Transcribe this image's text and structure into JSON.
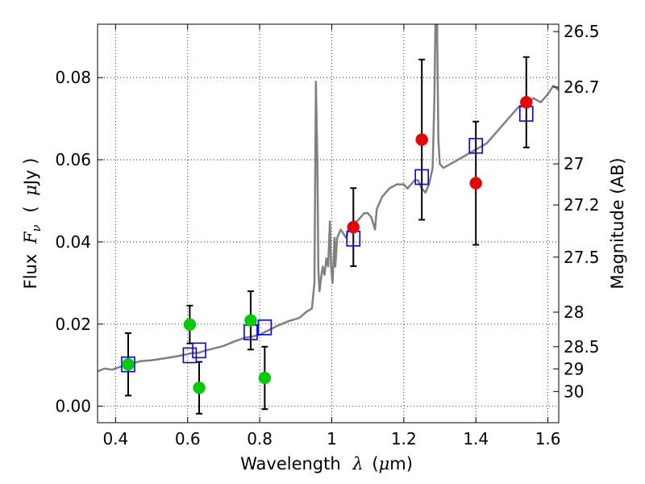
{
  "chart_data": {
    "type": "scatter",
    "xlabel": "Wavelength",
    "xlabel_symbol": "λ",
    "xlabel_unit_open": "(",
    "xlabel_unit_mu": "μ",
    "xlabel_unit_rest": "m)",
    "ylabel": "Flux",
    "ylabel_symbol": "F",
    "ylabel_symbol_sub": "ν",
    "ylabel_unit_open": "(",
    "ylabel_unit_mu": "μ",
    "ylabel_unit_rest": "Jy )",
    "y2label": "Magnitude (AB)",
    "xlim": [
      0.35,
      1.63
    ],
    "ylim": [
      -0.004,
      0.093
    ],
    "grid": true,
    "xticks": [
      0.4,
      0.6,
      0.8,
      1.0,
      1.2,
      1.4,
      1.6
    ],
    "xtick_labels": [
      "0.4",
      "0.6",
      "0.8",
      "1",
      "1.2",
      "1.4",
      "1.6"
    ],
    "yticks": [
      0.0,
      0.02,
      0.04,
      0.06,
      0.08
    ],
    "ytick_labels": [
      "0.00",
      "0.02",
      "0.04",
      "0.06",
      "0.08"
    ],
    "y2_ticks": [
      {
        "label": "26.5",
        "flux": 0.0912
      },
      {
        "label": "26.7",
        "flux": 0.0777
      },
      {
        "label": "27",
        "flux": 0.059
      },
      {
        "label": "27.2",
        "flux": 0.049
      },
      {
        "label": "27.5",
        "flux": 0.0363
      },
      {
        "label": "28",
        "flux": 0.0229
      },
      {
        "label": "28.5",
        "flux": 0.0145
      },
      {
        "label": "29",
        "flux": 0.0091
      },
      {
        "label": "30",
        "flux": 0.0036
      }
    ],
    "series": [
      {
        "kind": "line",
        "color": "#808080",
        "points": [
          [
            0.35,
            0.0085
          ],
          [
            0.37,
            0.0092
          ],
          [
            0.39,
            0.0089
          ],
          [
            0.41,
            0.0095
          ],
          [
            0.43,
            0.0101
          ],
          [
            0.45,
            0.0105
          ],
          [
            0.47,
            0.011
          ],
          [
            0.5,
            0.0112
          ],
          [
            0.53,
            0.0116
          ],
          [
            0.56,
            0.012
          ],
          [
            0.59,
            0.0125
          ],
          [
            0.61,
            0.0129
          ],
          [
            0.63,
            0.013
          ],
          [
            0.65,
            0.0136
          ],
          [
            0.67,
            0.014
          ],
          [
            0.7,
            0.0147
          ],
          [
            0.73,
            0.0158
          ],
          [
            0.76,
            0.0167
          ],
          [
            0.78,
            0.017
          ],
          [
            0.8,
            0.0174
          ],
          [
            0.82,
            0.0183
          ],
          [
            0.85,
            0.0196
          ],
          [
            0.88,
            0.0207
          ],
          [
            0.91,
            0.0215
          ],
          [
            0.93,
            0.023
          ],
          [
            0.945,
            0.0238
          ],
          [
            0.952,
            0.03
          ],
          [
            0.956,
            0.079
          ],
          [
            0.96,
            0.06
          ],
          [
            0.963,
            0.033
          ],
          [
            0.966,
            0.028
          ],
          [
            0.97,
            0.031
          ],
          [
            0.975,
            0.034
          ],
          [
            0.98,
            0.032
          ],
          [
            0.985,
            0.036
          ],
          [
            0.99,
            0.034
          ],
          [
            0.995,
            0.045
          ],
          [
            0.998,
            0.034
          ],
          [
            1.002,
            0.03
          ],
          [
            1.008,
            0.041
          ],
          [
            1.01,
            0.034
          ],
          [
            1.015,
            0.041
          ],
          [
            1.025,
            0.043
          ],
          [
            1.04,
            0.041
          ],
          [
            1.05,
            0.044
          ],
          [
            1.06,
            0.045
          ],
          [
            1.07,
            0.045
          ],
          [
            1.08,
            0.046
          ],
          [
            1.09,
            0.047
          ],
          [
            1.1,
            0.047
          ],
          [
            1.11,
            0.046
          ],
          [
            1.12,
            0.043
          ],
          [
            1.125,
            0.048
          ],
          [
            1.13,
            0.049
          ],
          [
            1.14,
            0.051
          ],
          [
            1.15,
            0.052
          ],
          [
            1.16,
            0.053
          ],
          [
            1.18,
            0.054
          ],
          [
            1.2,
            0.054
          ],
          [
            1.21,
            0.053
          ],
          [
            1.22,
            0.054
          ],
          [
            1.23,
            0.055
          ],
          [
            1.24,
            0.055
          ],
          [
            1.25,
            0.053
          ],
          [
            1.26,
            0.052
          ],
          [
            1.27,
            0.054
          ],
          [
            1.28,
            0.058
          ],
          [
            1.285,
            0.075
          ],
          [
            1.288,
            0.095
          ],
          [
            1.292,
            0.095
          ],
          [
            1.296,
            0.065
          ],
          [
            1.3,
            0.059
          ],
          [
            1.31,
            0.058
          ],
          [
            1.33,
            0.059
          ],
          [
            1.35,
            0.06
          ],
          [
            1.37,
            0.061
          ],
          [
            1.39,
            0.062
          ],
          [
            1.41,
            0.063
          ],
          [
            1.43,
            0.064
          ],
          [
            1.45,
            0.066
          ],
          [
            1.47,
            0.068
          ],
          [
            1.49,
            0.07
          ],
          [
            1.5,
            0.071
          ],
          [
            1.52,
            0.073
          ],
          [
            1.54,
            0.074
          ],
          [
            1.56,
            0.075
          ],
          [
            1.58,
            0.074
          ],
          [
            1.6,
            0.076
          ],
          [
            1.615,
            0.078
          ],
          [
            1.63,
            0.077
          ]
        ]
      },
      {
        "kind": "model_photometry",
        "marker": "open-square",
        "color": "#0000ff",
        "x": [
          0.435,
          0.606,
          0.632,
          0.775,
          0.814,
          1.06,
          1.25,
          1.4,
          1.54
        ],
        "y": [
          0.0102,
          0.0124,
          0.0136,
          0.018,
          0.0192,
          0.0408,
          0.0558,
          0.0634,
          0.0712
        ]
      },
      {
        "kind": "observed_photometry",
        "marker": "filled-circle",
        "color": "#00cc00",
        "x": [
          0.435,
          0.606,
          0.632,
          0.775,
          0.814
        ],
        "y": [
          0.0102,
          0.0199,
          0.0045,
          0.0209,
          0.0069
        ],
        "yerr": [
          0.0076,
          0.0046,
          0.0063,
          0.0071,
          0.0076
        ]
      },
      {
        "kind": "observed_photometry",
        "marker": "filled-circle",
        "color": "#ee0000",
        "x": [
          1.06,
          1.25,
          1.4,
          1.54
        ],
        "y": [
          0.0436,
          0.0649,
          0.0543,
          0.074
        ],
        "yerr": [
          0.0095,
          0.0195,
          0.015,
          0.011
        ]
      }
    ]
  }
}
